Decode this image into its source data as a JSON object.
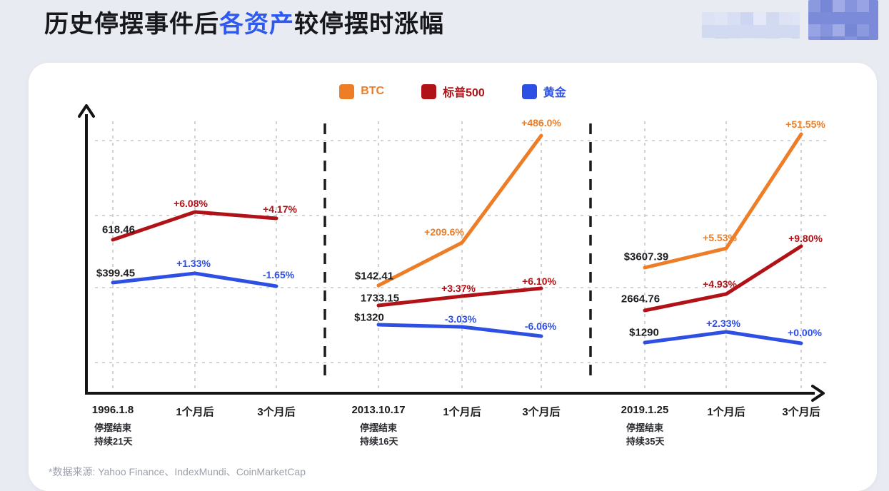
{
  "page": {
    "title": {
      "prefix": "历史停摆事件后",
      "highlight": "各资产",
      "suffix": "较停摆时涨幅"
    },
    "footer": "*数据来源: Yahoo Finance、IndexMundi、CoinMarketCap"
  },
  "colors": {
    "btc": "#ED7D26",
    "sp500": "#B11217",
    "gold": "#2E4FE3",
    "start_label": "#1D1E22",
    "title_highlight": "#2E5AF0",
    "gridline": "#C6C7CA",
    "axis": "#141414"
  },
  "legend": {
    "items": [
      {
        "id": "btc",
        "label": "BTC"
      },
      {
        "id": "sp500",
        "label": "标普500"
      },
      {
        "id": "gold",
        "label": "黄金"
      }
    ]
  },
  "chart_data": {
    "type": "line",
    "title": "历史停摆事件后各资产较停摆时涨幅",
    "xlabel": "",
    "ylabel": "",
    "grid": true,
    "legend_position": "top",
    "x_categories": [
      "1996.1.8",
      "1个月后",
      "3个月后",
      "2013.10.17",
      "1个月后",
      "3个月后",
      "2019.1.25",
      "1个月后",
      "3个月后"
    ],
    "panels": [
      {
        "event_date": "1996.1.8",
        "event_notes": [
          "停摆结束",
          "持续21天"
        ],
        "x_labels": [
          "1996.1.8",
          "1个月后",
          "3个月后"
        ],
        "series": [
          {
            "id": "sp500",
            "name": "标普500",
            "start_value_label": "618.46",
            "pct_changes": [
              0,
              6.08,
              4.17
            ],
            "pct_labels": [
              "+6.08%",
              "+4.17%"
            ]
          },
          {
            "id": "gold",
            "name": "黄金",
            "start_value_label": "$399.45",
            "pct_changes": [
              0,
              1.33,
              -1.65
            ],
            "pct_labels": [
              "+1.33%",
              "-1.65%"
            ]
          }
        ]
      },
      {
        "event_date": "2013.10.17",
        "event_notes": [
          "停摆结束",
          "持续16天"
        ],
        "x_labels": [
          "2013.10.17",
          "1个月后",
          "3个月后"
        ],
        "series": [
          {
            "id": "btc",
            "name": "BTC",
            "start_value_label": "$142.41",
            "pct_changes": [
              0,
              209.6,
              486.0
            ],
            "pct_labels": [
              "+209.6%",
              "+486.0%"
            ]
          },
          {
            "id": "sp500",
            "name": "标普500",
            "start_value_label": "1733.15",
            "pct_changes": [
              0,
              3.37,
              6.1
            ],
            "pct_labels": [
              "+3.37%",
              "+6.10%"
            ]
          },
          {
            "id": "gold",
            "name": "黄金",
            "start_value_label": "$1320",
            "pct_changes": [
              0,
              -3.03,
              -6.06
            ],
            "pct_labels": [
              "-3.03%",
              "-6.06%"
            ]
          }
        ]
      },
      {
        "event_date": "2019.1.25",
        "event_notes": [
          "停摆结束",
          "持续35天"
        ],
        "x_labels": [
          "2019.1.25",
          "1个月后",
          "3个月后"
        ],
        "series": [
          {
            "id": "btc",
            "name": "BTC",
            "start_value_label": "$3607.39",
            "pct_changes": [
              0,
              5.53,
              51.55
            ],
            "pct_labels": [
              "+5.53%",
              "+51.55%"
            ]
          },
          {
            "id": "sp500",
            "name": "标普500",
            "start_value_label": "2664.76",
            "pct_changes": [
              0,
              4.93,
              9.8
            ],
            "pct_labels": [
              "+4.93%",
              "+9.80%"
            ]
          },
          {
            "id": "gold",
            "name": "黄金",
            "start_value_label": "$1290",
            "pct_changes": [
              0,
              2.33,
              0.0
            ],
            "pct_labels": [
              "+2.33%",
              "+0.00%"
            ]
          }
        ]
      }
    ]
  }
}
